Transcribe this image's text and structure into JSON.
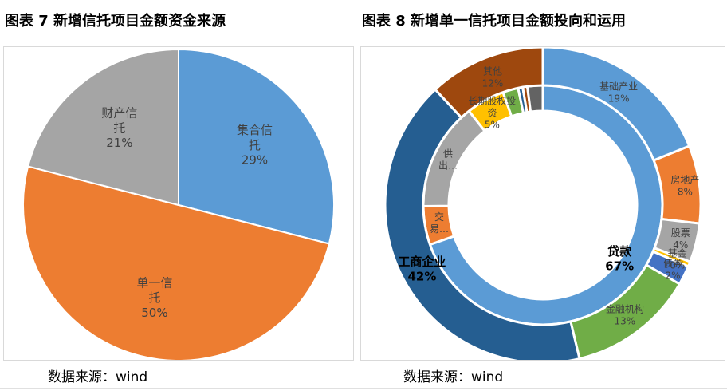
{
  "titles": {
    "left": "图表 7 新增信托项目金额资金来源",
    "right": "图表 8 新增单一信托项目金额投向和运用"
  },
  "source": {
    "left": "数据来源：wind",
    "right": "数据来源：wind"
  },
  "chart_data": [
    {
      "type": "pie",
      "title": "图表 7 新增信托项目金额资金来源",
      "slices": [
        {
          "name": "集合信托",
          "value": 29,
          "label": "29%",
          "name_lines": [
            "集合信",
            "托"
          ],
          "color": "#5b9bd5"
        },
        {
          "name": "单一信托",
          "value": 50,
          "label": "50%",
          "name_lines": [
            "单一信",
            "托"
          ],
          "color": "#ed7d31"
        },
        {
          "name": "财产信托",
          "value": 21,
          "label": "21%",
          "name_lines": [
            "财产信",
            "托"
          ],
          "color": "#a5a5a5"
        }
      ]
    },
    {
      "type": "pie",
      "subtype": "double-donut",
      "title": "图表 8 新增单一信托项目金额投向和运用",
      "inner_ring": [
        {
          "name": "贷款",
          "value": 67,
          "label": "67%",
          "color": "#5b9bd5"
        },
        {
          "name": "交易…",
          "value": 5,
          "color": "#ed7d31"
        },
        {
          "name": "供出…",
          "value": 14,
          "color": "#a5a5a5"
        },
        {
          "name": "长期股权投资",
          "value": 5,
          "label": "5%",
          "color": "#ffc000"
        },
        {
          "name": "other-4",
          "value": 2,
          "color": "#70ad47"
        },
        {
          "name": "other-5",
          "value": 0.6,
          "color": "#255e91"
        },
        {
          "name": "other-6",
          "value": 0.6,
          "color": "#9e480e"
        },
        {
          "name": "other-7",
          "value": 2,
          "color": "#636363"
        }
      ],
      "outer_ring": [
        {
          "name": "基础产业",
          "value": 19,
          "label": "19%",
          "color": "#5b9bd5"
        },
        {
          "name": "房地产",
          "value": 8,
          "label": "8%",
          "color": "#ed7d31"
        },
        {
          "name": "股票",
          "value": 4,
          "label": "4%",
          "color": "#a5a5a5"
        },
        {
          "name": "基金",
          "value": 0.5,
          "label": "0%",
          "color": "#ffc000"
        },
        {
          "name": "债券",
          "value": 2,
          "label": "2%",
          "color": "#4472c4"
        },
        {
          "name": "金融机构",
          "value": 13,
          "label": "13%",
          "color": "#70ad47"
        },
        {
          "name": "工商企业",
          "value": 42,
          "label": "42%",
          "color": "#255e91"
        },
        {
          "name": "其他",
          "value": 12,
          "label": "12%",
          "color": "#9e480e"
        }
      ]
    }
  ]
}
